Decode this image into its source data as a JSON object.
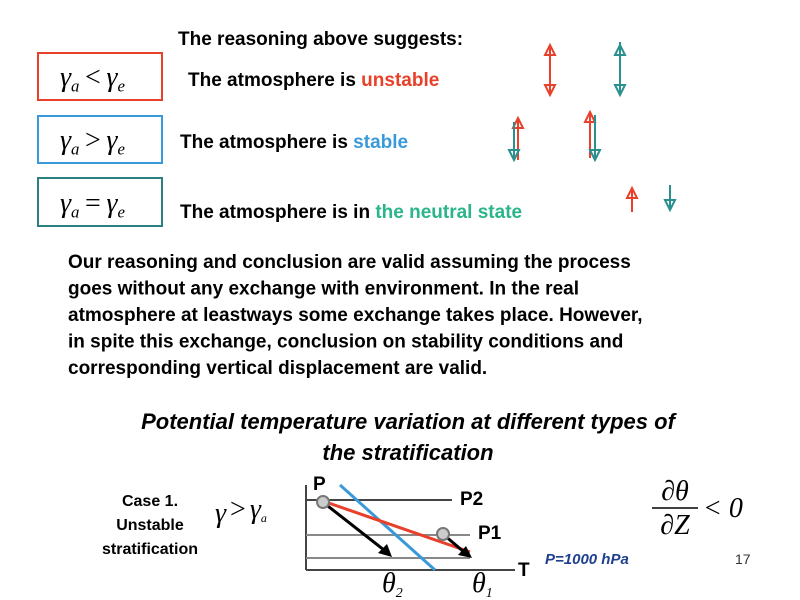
{
  "header": {
    "title": "The reasoning above suggests:"
  },
  "conditions": [
    {
      "formula": [
        "γ",
        "a",
        "<",
        "γ",
        "e"
      ],
      "text": "The atmosphere is ",
      "state": "unstable"
    },
    {
      "formula": [
        "γ",
        "a",
        ">",
        "γ",
        "e"
      ],
      "text": "The atmosphere is ",
      "state": "stable"
    },
    {
      "formula": [
        "γ",
        "a",
        "=",
        "γ",
        "e"
      ],
      "text": "The atmosphere is in ",
      "state": "the neutral state"
    }
  ],
  "paragraph": [
    "Our reasoning and conclusion are valid assuming the process",
    "goes without any exchange with environment. In the real",
    "atmosphere at leastways some exchange takes place. However,",
    "in spite this exchange, conclusion on stability conditions and",
    "corresponding vertical displacement are valid."
  ],
  "subtitle": [
    "Potential temperature variation at different types of",
    "the stratification"
  ],
  "case": {
    "lines": [
      "Case 1.",
      "Unstable",
      "stratification"
    ],
    "formula": [
      "γ",
      "",
      ">",
      "γ",
      "a"
    ]
  },
  "diagram": {
    "y_axis": "P",
    "x_axis": "T",
    "p2": "P2",
    "p1": "P1",
    "theta2": [
      "θ",
      "2"
    ],
    "theta1": [
      "θ",
      "1"
    ],
    "surface": "P=1000 hPa",
    "gradient": {
      "numerator": "∂θ",
      "denominator": "∂Z",
      "relation": "< 0"
    }
  },
  "page_number": "17"
}
